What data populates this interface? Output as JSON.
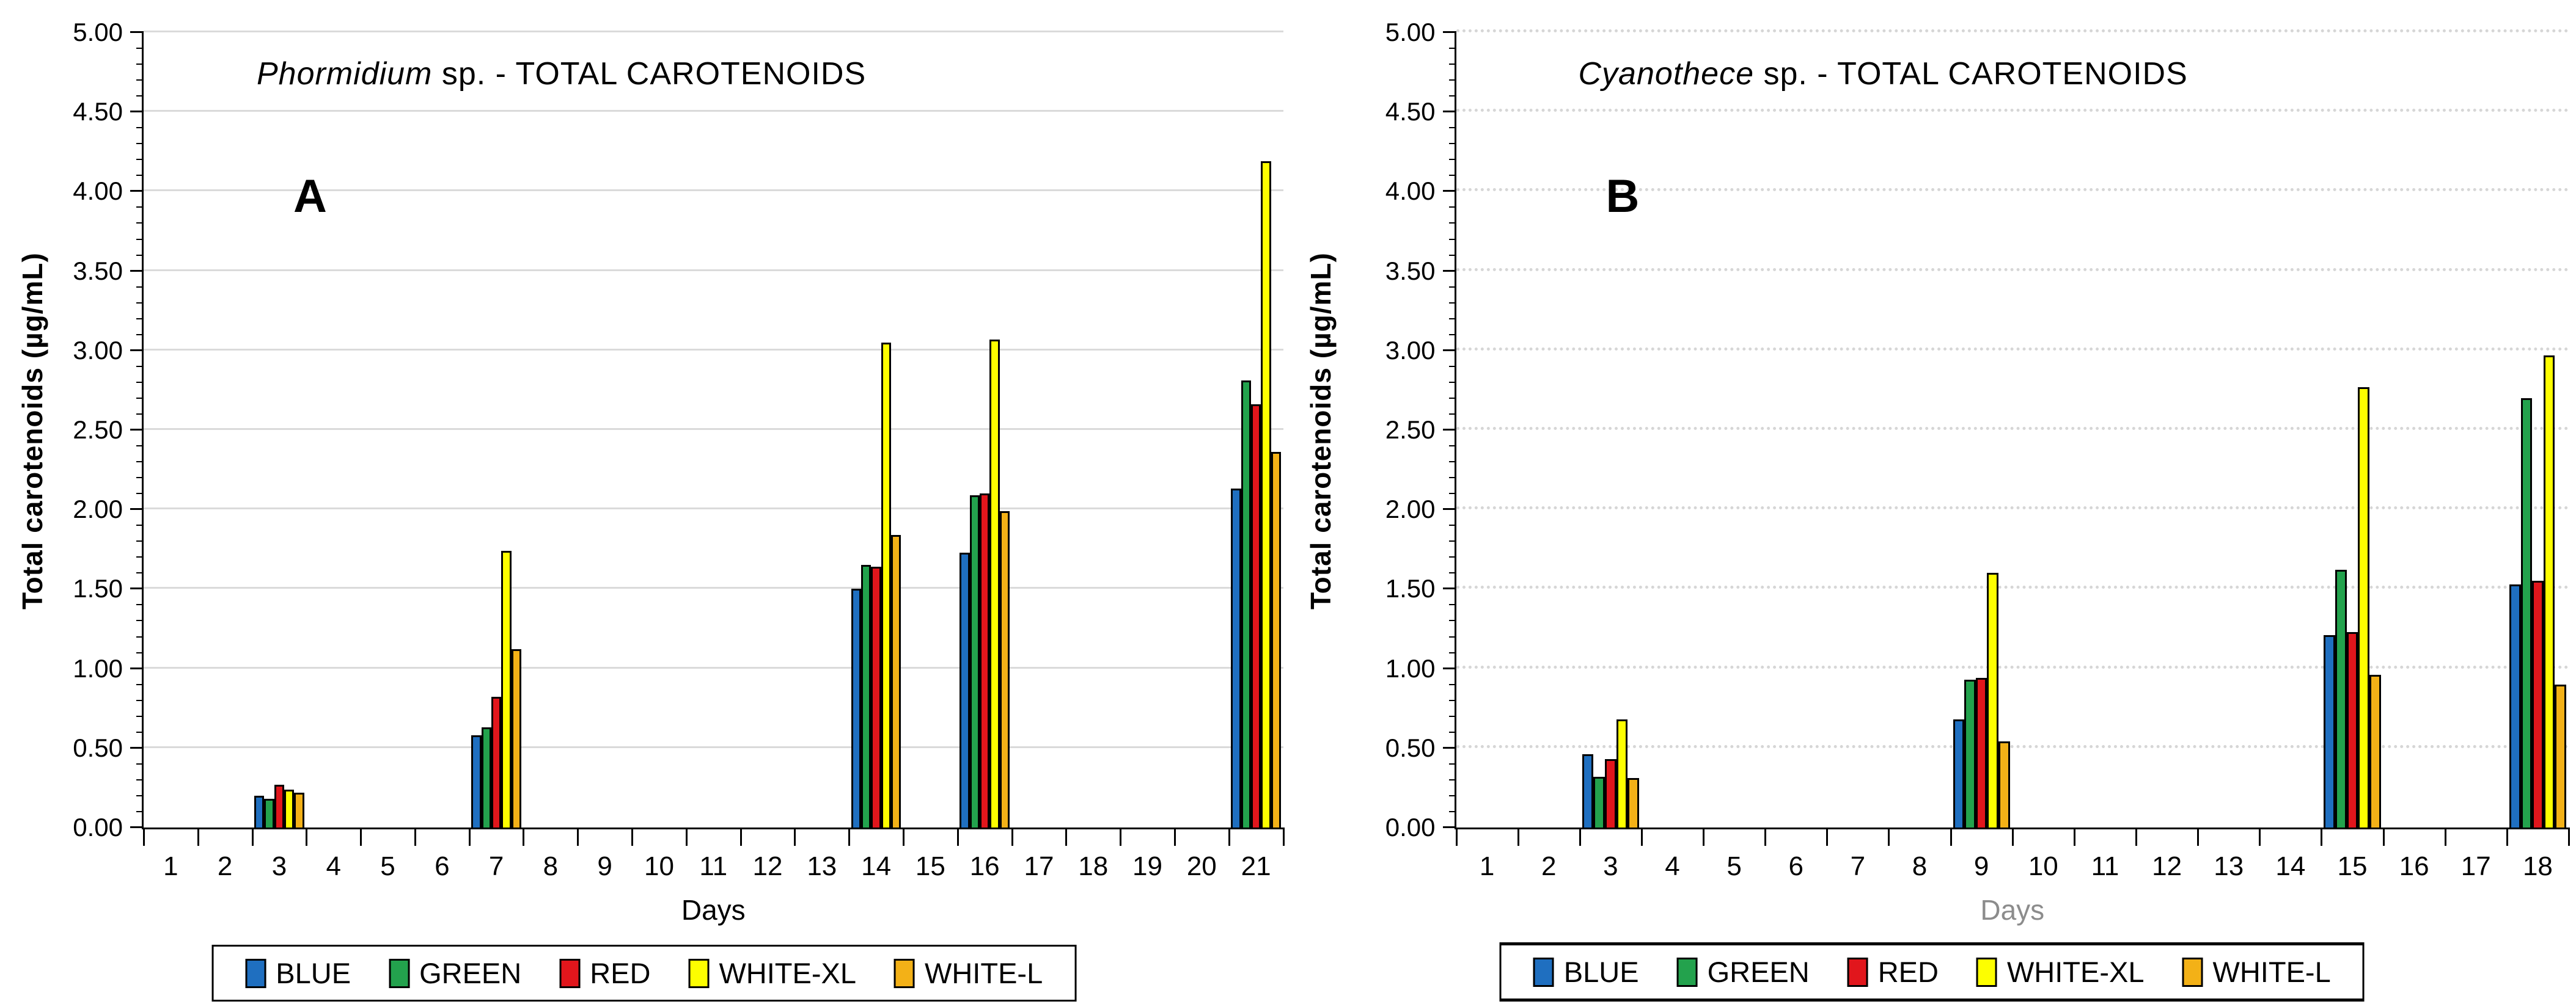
{
  "figure_title": "Total carotenoids bar charts for two cyanobacteria strains",
  "legend": {
    "entries": [
      {
        "label": "BLUE",
        "color": "#1F6FC0"
      },
      {
        "label": "GREEN",
        "color": "#23A24D"
      },
      {
        "label": "RED",
        "color": "#E1161C"
      },
      {
        "label": "WHITE-XL",
        "color": "#FDFE00"
      },
      {
        "label": "WHITE-L",
        "color": "#F3B117"
      }
    ]
  },
  "chart_data": [
    {
      "type": "bar",
      "panel_label": "A",
      "title_italic": "Phormidium",
      "title_rest": " sp.  - TOTAL CAROTENOIDS",
      "title_full": "Phormidium sp. - TOTAL CAROTENOIDS",
      "xlabel": "Days",
      "xlabel_color": "#000000",
      "ylabel": "Total carotenoids (µg/mL)",
      "ylim": [
        0,
        5
      ],
      "ytick_step": 0.5,
      "yminor_step": 0.1,
      "ytick_labels": [
        "0.00",
        "0.50",
        "1.00",
        "1.50",
        "2.00",
        "2.50",
        "3.00",
        "3.50",
        "4.00",
        "4.50",
        "5.00"
      ],
      "categories": [
        "1",
        "2",
        "3",
        "4",
        "5",
        "6",
        "7",
        "8",
        "9",
        "10",
        "11",
        "12",
        "13",
        "14",
        "15",
        "16",
        "17",
        "18",
        "19",
        "20",
        "21"
      ],
      "gridline_style": "solid",
      "legend_position": "bottom",
      "data_days": [
        3,
        7,
        14,
        16,
        21
      ],
      "series": [
        {
          "name": "BLUE",
          "color": "#1F6FC0",
          "values": [
            0.2,
            0.58,
            1.5,
            1.73,
            2.13
          ]
        },
        {
          "name": "GREEN",
          "color": "#23A24D",
          "values": [
            0.18,
            0.63,
            1.65,
            2.09,
            2.81
          ]
        },
        {
          "name": "RED",
          "color": "#E1161C",
          "values": [
            0.27,
            0.82,
            1.64,
            2.1,
            2.66
          ]
        },
        {
          "name": "WHITE-XL",
          "color": "#FDFE00",
          "values": [
            0.24,
            1.74,
            3.05,
            3.07,
            4.19
          ]
        },
        {
          "name": "WHITE-L",
          "color": "#F3B117",
          "values": [
            0.22,
            1.12,
            1.84,
            1.99,
            2.36
          ]
        }
      ]
    },
    {
      "type": "bar",
      "panel_label": "B",
      "title_italic": "Cyanothece",
      "title_rest": " sp. - TOTAL CAROTENOIDS",
      "title_full": "Cyanothece sp. - TOTAL CAROTENOIDS",
      "xlabel": "Days",
      "xlabel_color": "#8C8C8C",
      "ylabel": "Total carotenoids (µg/mL)",
      "ylim": [
        0,
        5
      ],
      "ytick_step": 0.5,
      "yminor_step": 0.1,
      "ytick_labels": [
        "0.00",
        "0.50",
        "1.00",
        "1.50",
        "2.00",
        "2.50",
        "3.00",
        "3.50",
        "4.00",
        "4.50",
        "5.00"
      ],
      "categories": [
        "1",
        "2",
        "3",
        "4",
        "5",
        "6",
        "7",
        "8",
        "9",
        "10",
        "11",
        "12",
        "13",
        "14",
        "15",
        "16",
        "17",
        "18"
      ],
      "gridline_style": "dotted",
      "legend_position": "bottom",
      "data_days": [
        3,
        9,
        15,
        18
      ],
      "series": [
        {
          "name": "BLUE",
          "color": "#1F6FC0",
          "values": [
            0.46,
            0.68,
            1.21,
            1.53
          ]
        },
        {
          "name": "GREEN",
          "color": "#23A24D",
          "values": [
            0.32,
            0.93,
            1.62,
            2.7
          ]
        },
        {
          "name": "RED",
          "color": "#E1161C",
          "values": [
            0.43,
            0.94,
            1.23,
            1.55
          ]
        },
        {
          "name": "WHITE-XL",
          "color": "#FDFE00",
          "values": [
            0.68,
            1.6,
            2.77,
            2.97
          ]
        },
        {
          "name": "WHITE-L",
          "color": "#F3B117",
          "values": [
            0.31,
            0.54,
            0.96,
            0.9
          ]
        }
      ]
    }
  ]
}
